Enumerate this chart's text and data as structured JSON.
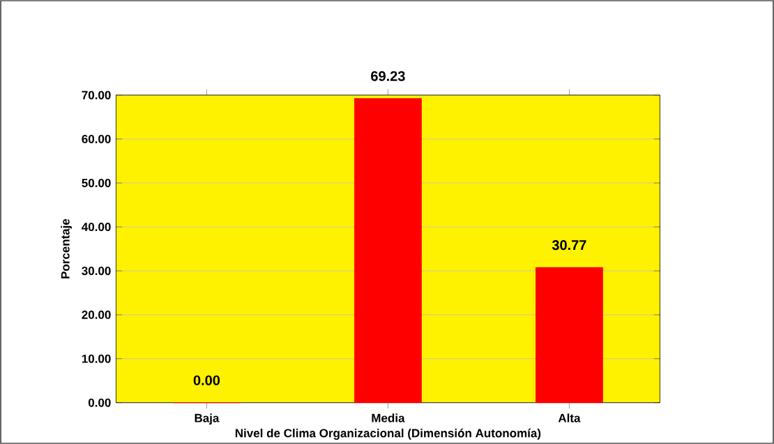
{
  "chart_data": {
    "type": "bar",
    "xlabel": "Nivel de Clima Organizacional (Dimensión Autonomía)",
    "ylabel": "Porcentaje",
    "categories": [
      "Baja",
      "Media",
      "Alta"
    ],
    "values": [
      0,
      69.23,
      30.77
    ],
    "color": "#ff0000",
    "value_labels": [
      "0.00",
      "69.23",
      "30.77"
    ],
    "ylim": [
      0,
      70
    ],
    "yticks": [
      {
        "value": 0,
        "label": "0.00"
      },
      {
        "value": 10,
        "label": "10.00"
      },
      {
        "value": 20,
        "label": "20.00"
      },
      {
        "value": 30,
        "label": "30.00"
      },
      {
        "value": 40,
        "label": "40.00"
      },
      {
        "value": 50,
        "label": "50.00"
      },
      {
        "value": 60,
        "label": "60.00"
      },
      {
        "value": 70,
        "label": "70.00"
      }
    ],
    "grid": "y"
  }
}
